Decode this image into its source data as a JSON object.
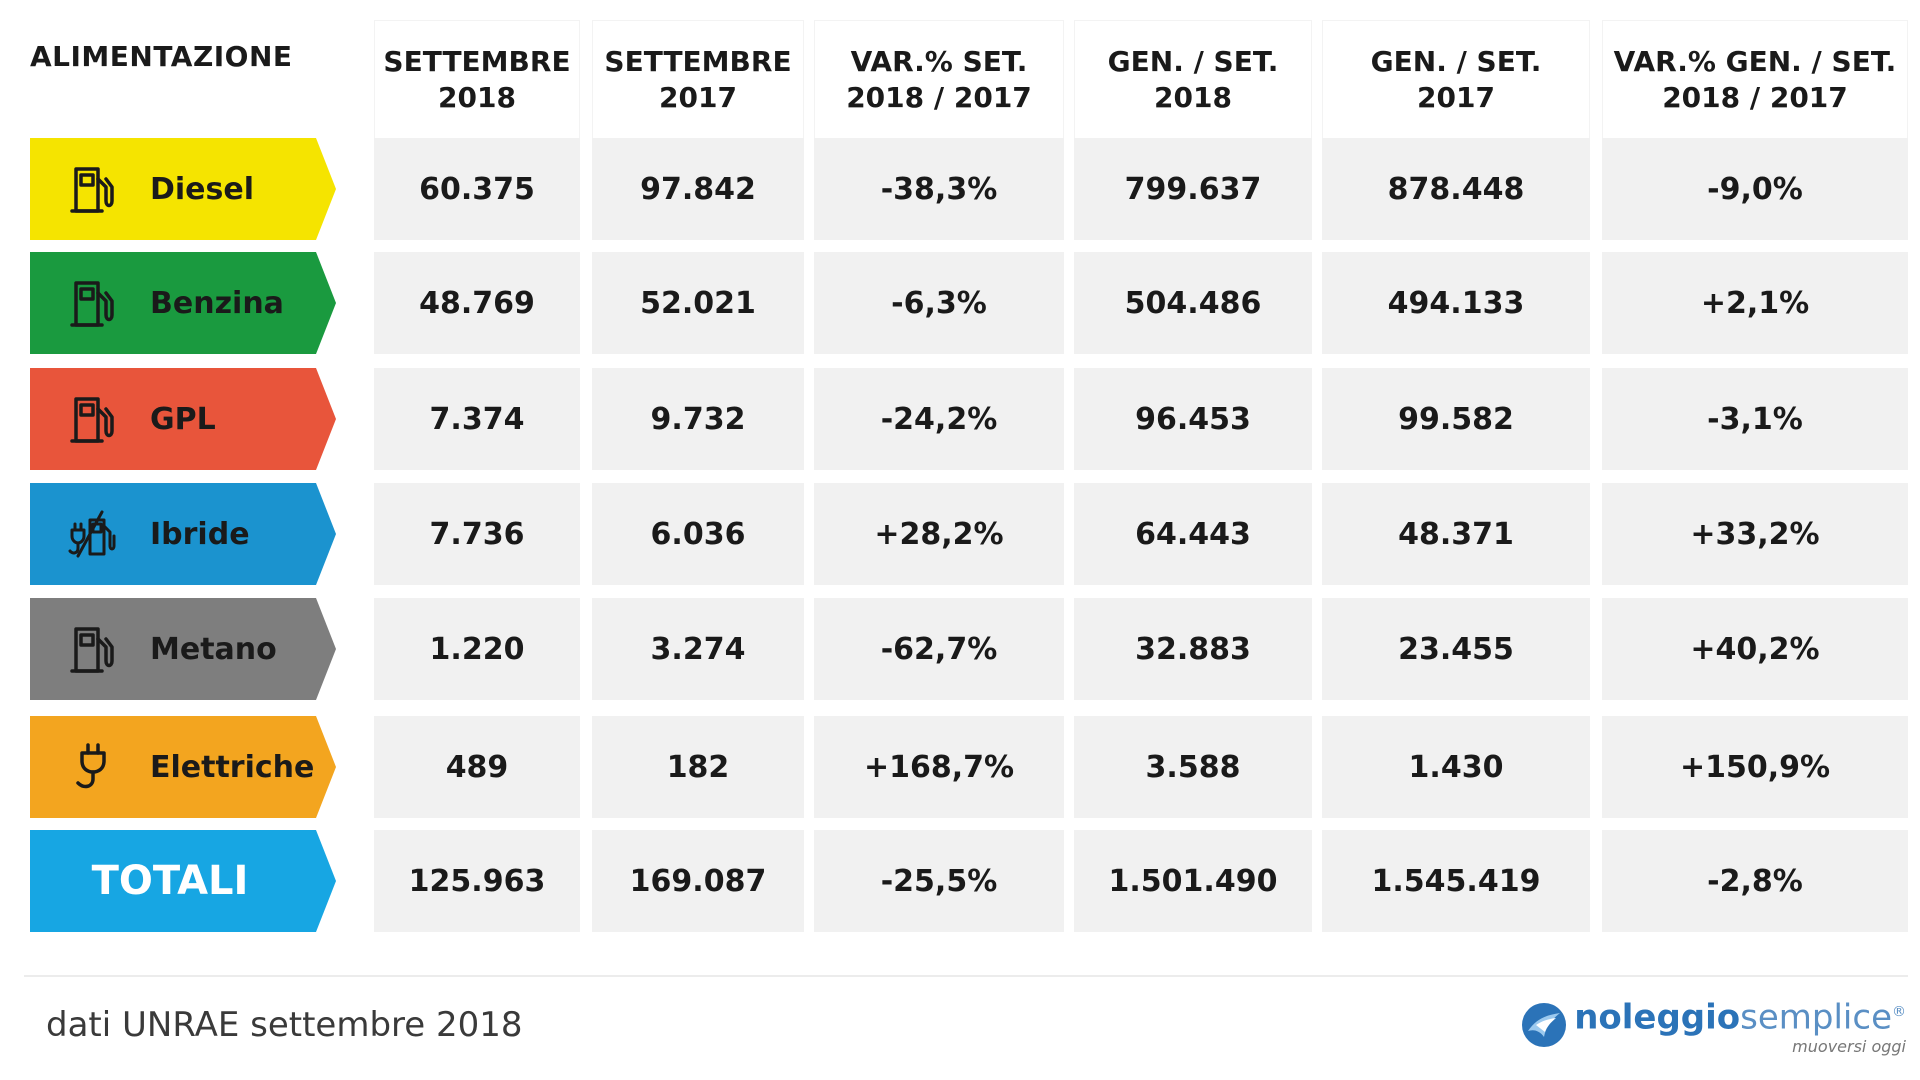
{
  "header": {
    "fuel_col": "ALIMENTAZIONE",
    "columns": [
      [
        "SETTEMBRE",
        "2018"
      ],
      [
        "SETTEMBRE",
        "2017"
      ],
      [
        "VAR.% SET.",
        "2018 / 2017"
      ],
      [
        "GEN. / SET.",
        "2018"
      ],
      [
        "GEN. / SET.",
        "2017"
      ],
      [
        "VAR.% GEN. / SET.",
        "2018 / 2017"
      ]
    ]
  },
  "rows": [
    {
      "label": "Diesel",
      "color": "#f5e400",
      "icon": "fuel-pump-icon",
      "values": [
        "60.375",
        "97.842",
        "-38,3%",
        "799.637",
        "878.448",
        "-9,0%"
      ]
    },
    {
      "label": "Benzina",
      "color": "#1a9a3f",
      "icon": "fuel-pump-icon",
      "values": [
        "48.769",
        "52.021",
        "-6,3%",
        "504.486",
        "494.133",
        "+2,1%"
      ]
    },
    {
      "label": "GPL",
      "color": "#e8553b",
      "icon": "fuel-pump-icon",
      "values": [
        "7.374",
        "9.732",
        "-24,2%",
        "96.453",
        "99.582",
        "-3,1%"
      ]
    },
    {
      "label": "Ibride",
      "color": "#1b93cf",
      "icon": "hybrid-plug-pump-icon",
      "values": [
        "7.736",
        "6.036",
        "+28,2%",
        "64.443",
        "48.371",
        "+33,2%"
      ]
    },
    {
      "label": "Metano",
      "color": "#7e7e7e",
      "icon": "fuel-pump-icon",
      "values": [
        "1.220",
        "3.274",
        "-62,7%",
        "32.883",
        "23.455",
        "+40,2%"
      ]
    },
    {
      "label": "Elettriche",
      "color": "#f3a51f",
      "icon": "electric-plug-icon",
      "values": [
        "489",
        "182",
        "+168,7%",
        "3.588",
        "1.430",
        "+150,9%"
      ]
    }
  ],
  "total": {
    "label": "TOTALI",
    "color": "#17a6e3",
    "values": [
      "125.963",
      "169.087",
      "-25,5%",
      "1.501.490",
      "1.545.419",
      "-2,8%"
    ]
  },
  "footer": {
    "source": "dati UNRAE settembre 2018",
    "brand_bold": "noleggio",
    "brand_light": "semplice",
    "brand_mark": "®",
    "brand_tagline": "muoversi oggi"
  }
}
